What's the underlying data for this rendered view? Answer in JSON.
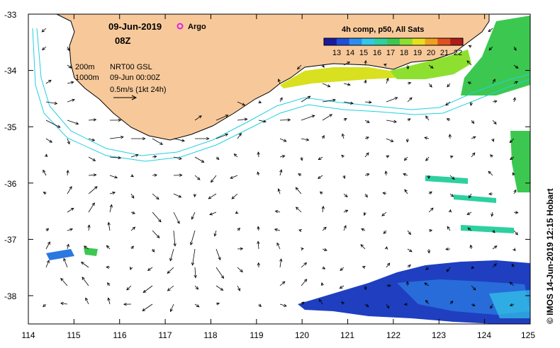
{
  "map": {
    "date": "09-Jun-2019",
    "hour": "08Z",
    "argo_label": "Argo",
    "colorbar_title": "4h comp, p50, All Sats",
    "colorbar_ticks": [
      "13",
      "14",
      "15",
      "16",
      "17",
      "18",
      "19",
      "20",
      "21",
      "22"
    ],
    "colorbar_colors": [
      "#1a1aa0",
      "#1f4fd8",
      "#2a8ef0",
      "#33c8e8",
      "#2ed0a0",
      "#3cc850",
      "#8ee030",
      "#e6e020",
      "#f0a020",
      "#e05020",
      "#b01a1a"
    ],
    "iso_200": "200m",
    "iso_1000": "1000m",
    "product": "NRT00 GSL",
    "product_time": "09-Jun 00:00Z",
    "scale_label": "0.5m/s (1kt 24h)",
    "credit": "© IMOS 14-Jun-2019 12:15 Hobart",
    "land_color": "#f7c99a",
    "coast_contour_color": "#22d0e0",
    "lon_ticks": [
      "114",
      "115",
      "116",
      "117",
      "118",
      "119",
      "120",
      "121",
      "122",
      "123",
      "124",
      "125"
    ],
    "lat_ticks": [
      "-33",
      "-34",
      "-35",
      "-36",
      "-37",
      "-38"
    ]
  }
}
